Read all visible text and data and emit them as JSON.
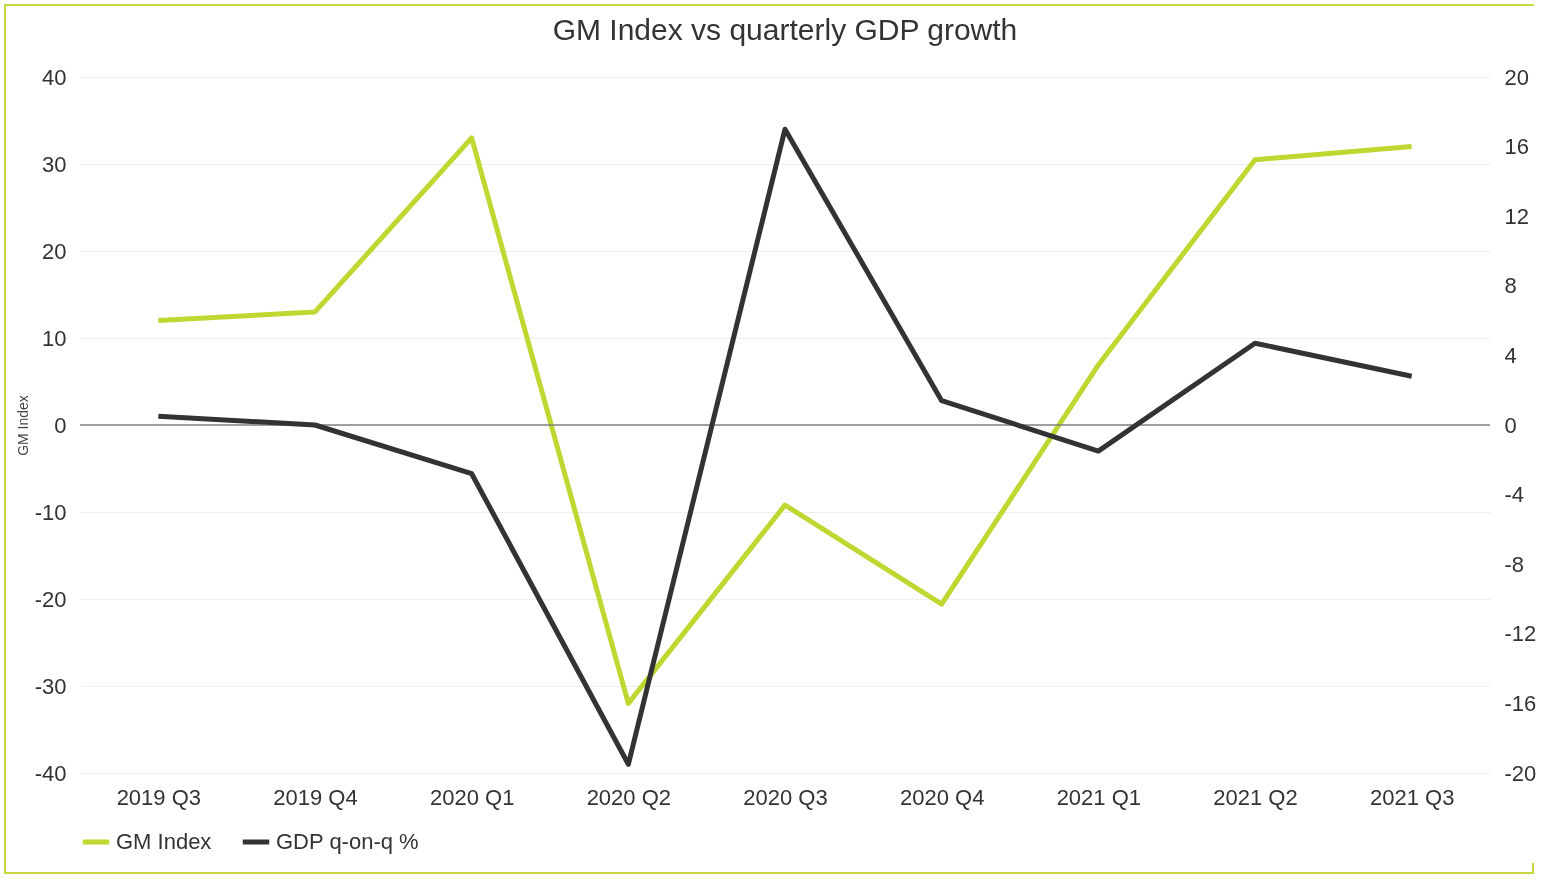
{
  "chart_data": {
    "type": "line",
    "title": "GM Index vs quarterly GDP growth",
    "ylabel": "GM Index",
    "categories": [
      "2019 Q3",
      "2019 Q4",
      "2020 Q1",
      "2020 Q2",
      "2020 Q3",
      "2020 Q4",
      "2021 Q1",
      "2021 Q2",
      "2021 Q3"
    ],
    "series": [
      {
        "name": "GM Index",
        "color": "#bfd730",
        "values": [
          12,
          13,
          33,
          -32,
          -9.2,
          -20.6,
          6.9,
          30.5,
          32
        ]
      },
      {
        "name": "GDP q-on-q %",
        "color": "#333333",
        "axis": "y2",
        "values": [
          0.5,
          0,
          -2.8,
          -19.5,
          17,
          1.4,
          -1.5,
          4.7,
          2.8
        ]
      }
    ],
    "ylim": [
      -40,
      40
    ],
    "yticks": [
      -40,
      -30,
      -20,
      -10,
      0,
      10,
      20,
      30,
      40
    ],
    "y2lim": [
      -20,
      20
    ],
    "y2ticks": [
      -20,
      -16,
      -12,
      -8,
      -4,
      0,
      4,
      8,
      12,
      16,
      20
    ],
    "ref_lines": [
      {
        "axis": "y",
        "value": 0,
        "color": "#808080"
      }
    ],
    "grid": "y",
    "legend": "bottom",
    "marker": "none",
    "line_style": "solid"
  }
}
